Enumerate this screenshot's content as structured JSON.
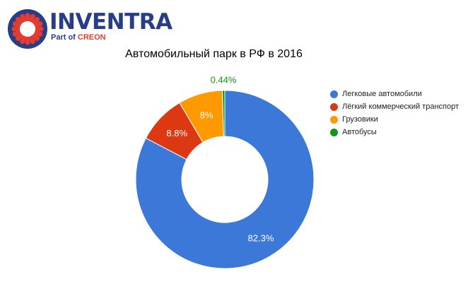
{
  "logo": {
    "wordmark": "INVENTRA",
    "tagline_prefix": "Part of",
    "tagline_brand": "CREON",
    "ring_color": "#e43d30",
    "text_color": "#273e86"
  },
  "chart_data": {
    "type": "pie",
    "title": "Автомобильный парк в РФ в 2016",
    "donut": true,
    "legend_position": "right",
    "slices": [
      {
        "label": "Легковые автомобили",
        "value": 82.3,
        "value_label": "82.3%",
        "color": "#3c78d8"
      },
      {
        "label": "Лёгкий коммерческий транспорт",
        "value": 8.8,
        "value_label": "8.8%",
        "color": "#dc3912"
      },
      {
        "label": "Грузовики",
        "value": 8,
        "value_label": "8%",
        "color": "#ff9900"
      },
      {
        "label": "Автобусы",
        "value": 0.44,
        "value_label": "0.44%",
        "color": "#109618"
      }
    ]
  }
}
